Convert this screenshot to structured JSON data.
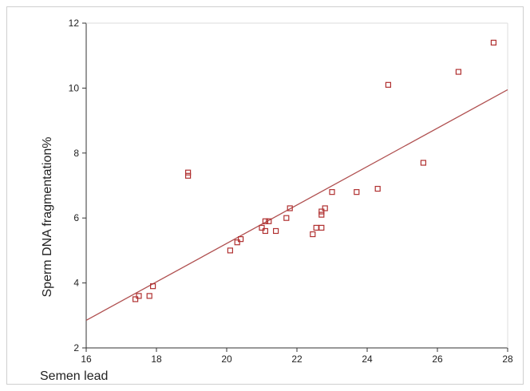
{
  "chart_data": {
    "type": "scatter",
    "title": "",
    "xlabel": "Semen lead",
    "ylabel": "Sperm DNA fragmentation%",
    "xlim": [
      16,
      28
    ],
    "ylim": [
      2,
      12
    ],
    "xticks": [
      16,
      18,
      20,
      22,
      24,
      26,
      28
    ],
    "yticks": [
      2,
      4,
      6,
      8,
      10,
      12
    ],
    "grid": false,
    "legend": "none",
    "marker_color": "#b03030",
    "line_color": "#b05050",
    "series": [
      {
        "points": [
          [
            17.4,
            3.5
          ],
          [
            17.5,
            3.6
          ],
          [
            17.8,
            3.6
          ],
          [
            17.9,
            3.9
          ],
          [
            18.9,
            7.3
          ],
          [
            18.9,
            7.4
          ],
          [
            20.1,
            5.0
          ],
          [
            20.3,
            5.25
          ],
          [
            20.4,
            5.35
          ],
          [
            21.0,
            5.7
          ],
          [
            21.1,
            5.9
          ],
          [
            21.1,
            5.6
          ],
          [
            21.2,
            5.9
          ],
          [
            21.4,
            5.6
          ],
          [
            21.7,
            6.0
          ],
          [
            21.8,
            6.3
          ],
          [
            22.45,
            5.5
          ],
          [
            22.55,
            5.7
          ],
          [
            22.7,
            5.7
          ],
          [
            22.7,
            6.1
          ],
          [
            22.7,
            6.2
          ],
          [
            22.8,
            6.3
          ],
          [
            23.0,
            6.8
          ],
          [
            23.7,
            6.8
          ],
          [
            24.3,
            6.9
          ],
          [
            24.6,
            10.1
          ],
          [
            25.6,
            7.7
          ],
          [
            26.6,
            10.5
          ],
          [
            27.6,
            11.4
          ]
        ]
      }
    ],
    "fit_line": {
      "x": [
        16,
        28
      ],
      "y": [
        2.85,
        9.95
      ]
    }
  }
}
